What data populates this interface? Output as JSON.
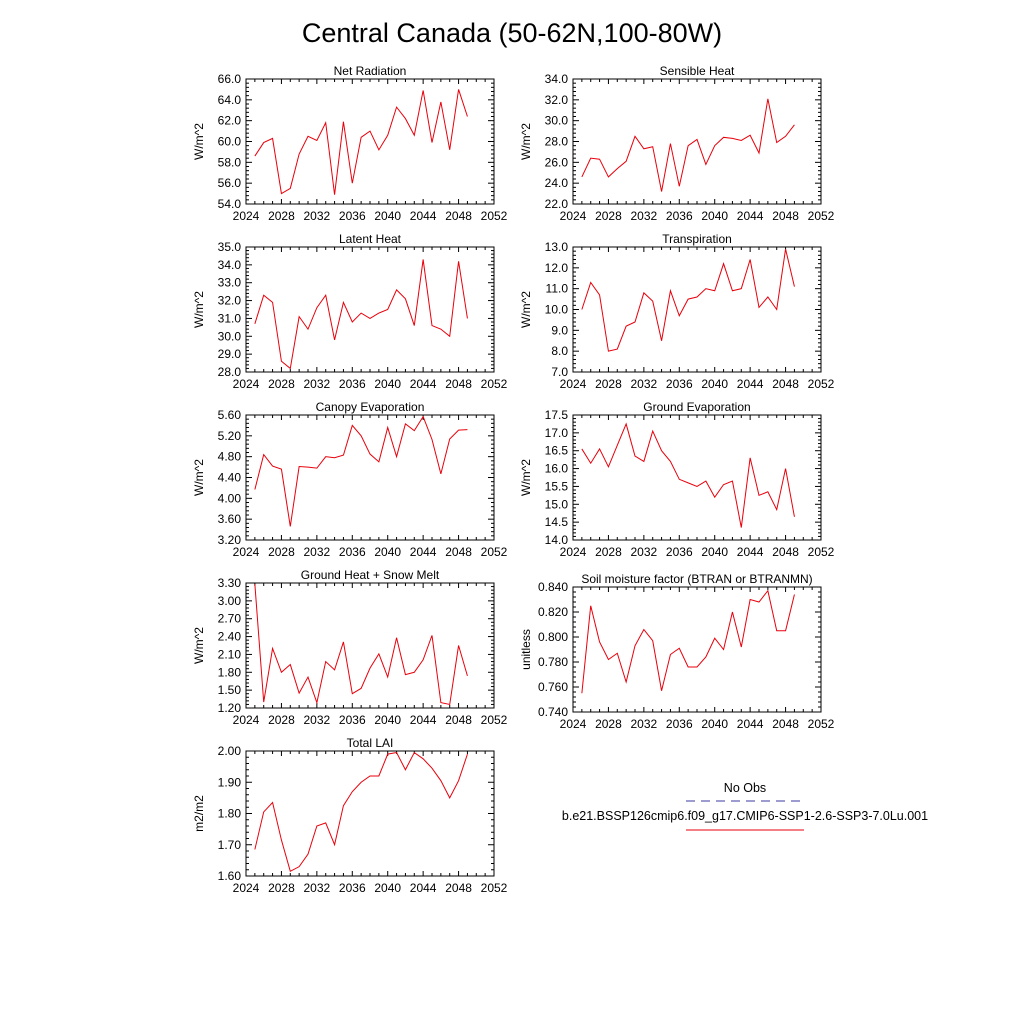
{
  "figure": {
    "title": "Central Canada (50-62N,100-80W)",
    "line_color": "#e8000b",
    "obs_color": "#3a3aa0"
  },
  "legend": {
    "obs_label": "No Obs",
    "model_label": "b.e21.BSSP126cmip6.f09_g17.CMIP6-SSP1-2.6-SSP3-7.0Lu.001"
  },
  "chart_data": [
    {
      "type": "line",
      "title": "Net Radiation",
      "ylabel": "W/m^2",
      "xlim": [
        2024,
        2052
      ],
      "ylim": [
        54,
        66
      ],
      "xticks": [
        2024,
        2028,
        2032,
        2036,
        2040,
        2044,
        2048,
        2052
      ],
      "yticks": [
        "54.0",
        "56.0",
        "58.0",
        "60.0",
        "62.0",
        "64.0",
        "66.0"
      ],
      "x": [
        2025,
        2026,
        2027,
        2028,
        2029,
        2030,
        2031,
        2032,
        2033,
        2034,
        2035,
        2036,
        2037,
        2038,
        2039,
        2040,
        2041,
        2042,
        2043,
        2044,
        2045,
        2046,
        2047,
        2048,
        2049
      ],
      "series": [
        {
          "values": [
            58.6,
            59.9,
            60.3,
            55.0,
            55.5,
            58.8,
            60.5,
            60.1,
            61.8,
            54.9,
            61.9,
            56.0,
            60.4,
            61.0,
            59.2,
            60.6,
            63.3,
            62.2,
            60.6,
            64.9,
            59.9,
            63.8,
            59.2,
            65.0,
            62.4
          ]
        }
      ]
    },
    {
      "type": "line",
      "title": "Sensible Heat",
      "ylabel": "W/m^2",
      "xlim": [
        2024,
        2052
      ],
      "ylim": [
        22,
        34
      ],
      "xticks": [
        2024,
        2028,
        2032,
        2036,
        2040,
        2044,
        2048,
        2052
      ],
      "yticks": [
        "22.0",
        "24.0",
        "26.0",
        "28.0",
        "30.0",
        "32.0",
        "34.0"
      ],
      "x": [
        2025,
        2026,
        2027,
        2028,
        2029,
        2030,
        2031,
        2032,
        2033,
        2034,
        2035,
        2036,
        2037,
        2038,
        2039,
        2040,
        2041,
        2042,
        2043,
        2044,
        2045,
        2046,
        2047,
        2048,
        2049
      ],
      "series": [
        {
          "values": [
            24.6,
            26.4,
            26.3,
            24.6,
            25.4,
            26.1,
            28.5,
            27.3,
            27.5,
            23.2,
            27.8,
            23.7,
            27.6,
            28.2,
            25.8,
            27.6,
            28.4,
            28.3,
            28.1,
            28.6,
            26.9,
            32.1,
            27.9,
            28.5,
            29.6
          ]
        }
      ]
    },
    {
      "type": "line",
      "title": "Latent Heat",
      "ylabel": "W/m^2",
      "xlim": [
        2024,
        2052
      ],
      "ylim": [
        28,
        35
      ],
      "xticks": [
        2024,
        2028,
        2032,
        2036,
        2040,
        2044,
        2048,
        2052
      ],
      "yticks": [
        "28.0",
        "29.0",
        "30.0",
        "31.0",
        "32.0",
        "33.0",
        "34.0",
        "35.0"
      ],
      "x": [
        2025,
        2026,
        2027,
        2028,
        2029,
        2030,
        2031,
        2032,
        2033,
        2034,
        2035,
        2036,
        2037,
        2038,
        2039,
        2040,
        2041,
        2042,
        2043,
        2044,
        2045,
        2046,
        2047,
        2048,
        2049
      ],
      "series": [
        {
          "values": [
            30.7,
            32.3,
            31.9,
            28.6,
            28.2,
            31.1,
            30.4,
            31.6,
            32.3,
            29.8,
            31.9,
            30.8,
            31.3,
            31.0,
            31.3,
            31.5,
            32.6,
            32.1,
            30.6,
            34.3,
            30.6,
            30.4,
            30.0,
            34.2,
            31.0
          ]
        }
      ]
    },
    {
      "type": "line",
      "title": "Transpiration",
      "ylabel": "W/m^2",
      "xlim": [
        2024,
        2052
      ],
      "ylim": [
        7,
        13
      ],
      "xticks": [
        2024,
        2028,
        2032,
        2036,
        2040,
        2044,
        2048,
        2052
      ],
      "yticks": [
        "7.0",
        "8.0",
        "9.0",
        "10.0",
        "11.0",
        "12.0",
        "13.0"
      ],
      "x": [
        2025,
        2026,
        2027,
        2028,
        2029,
        2030,
        2031,
        2032,
        2033,
        2034,
        2035,
        2036,
        2037,
        2038,
        2039,
        2040,
        2041,
        2042,
        2043,
        2044,
        2045,
        2046,
        2047,
        2048,
        2049
      ],
      "series": [
        {
          "values": [
            10.0,
            11.3,
            10.7,
            8.0,
            8.1,
            9.2,
            9.4,
            10.8,
            10.4,
            8.5,
            10.9,
            9.7,
            10.5,
            10.6,
            11.0,
            10.9,
            12.2,
            10.9,
            11.0,
            12.4,
            10.1,
            10.6,
            10.0,
            12.9,
            11.1
          ]
        }
      ]
    },
    {
      "type": "line",
      "title": "Canopy Evaporation",
      "ylabel": "W/m^2",
      "xlim": [
        2024,
        2052
      ],
      "ylim": [
        3.2,
        5.6
      ],
      "xticks": [
        2024,
        2028,
        2032,
        2036,
        2040,
        2044,
        2048,
        2052
      ],
      "yticks": [
        "3.20",
        "3.60",
        "4.00",
        "4.40",
        "4.80",
        "5.20",
        "5.60"
      ],
      "x": [
        2025,
        2026,
        2027,
        2028,
        2029,
        2030,
        2031,
        2032,
        2033,
        2034,
        2035,
        2036,
        2037,
        2038,
        2039,
        2040,
        2041,
        2042,
        2043,
        2044,
        2045,
        2046,
        2047,
        2048,
        2049
      ],
      "series": [
        {
          "values": [
            4.17,
            4.84,
            4.62,
            4.56,
            3.46,
            4.61,
            4.6,
            4.58,
            4.8,
            4.78,
            4.83,
            5.4,
            5.2,
            4.85,
            4.7,
            5.36,
            4.8,
            5.43,
            5.3,
            5.57,
            5.13,
            4.47,
            5.14,
            5.31,
            5.32
          ]
        }
      ]
    },
    {
      "type": "line",
      "title": "Ground Evaporation",
      "ylabel": "W/m^2",
      "xlim": [
        2024,
        2052
      ],
      "ylim": [
        14,
        17.5
      ],
      "xticks": [
        2024,
        2028,
        2032,
        2036,
        2040,
        2044,
        2048,
        2052
      ],
      "yticks": [
        "14.0",
        "14.5",
        "15.0",
        "15.5",
        "16.0",
        "16.5",
        "17.0",
        "17.5"
      ],
      "x": [
        2025,
        2026,
        2027,
        2028,
        2029,
        2030,
        2031,
        2032,
        2033,
        2034,
        2035,
        2036,
        2037,
        2038,
        2039,
        2040,
        2041,
        2042,
        2043,
        2044,
        2045,
        2046,
        2047,
        2048,
        2049
      ],
      "series": [
        {
          "values": [
            16.55,
            16.15,
            16.55,
            16.05,
            16.65,
            17.25,
            16.35,
            16.2,
            17.05,
            16.5,
            16.2,
            15.7,
            15.6,
            15.5,
            15.65,
            15.2,
            15.55,
            15.65,
            14.35,
            16.3,
            15.25,
            15.35,
            14.85,
            16.0,
            14.65
          ]
        }
      ]
    },
    {
      "type": "line",
      "title": "Ground Heat + Snow Melt",
      "ylabel": "W/m^2",
      "xlim": [
        2024,
        2052
      ],
      "ylim": [
        1.2,
        3.3
      ],
      "xticks": [
        2024,
        2028,
        2032,
        2036,
        2040,
        2044,
        2048,
        2052
      ],
      "yticks": [
        "1.20",
        "1.50",
        "1.80",
        "2.10",
        "2.40",
        "2.70",
        "3.00",
        "3.30"
      ],
      "x": [
        2025,
        2026,
        2027,
        2028,
        2029,
        2030,
        2031,
        2032,
        2033,
        2034,
        2035,
        2036,
        2037,
        2038,
        2039,
        2040,
        2041,
        2042,
        2043,
        2044,
        2045,
        2046,
        2047,
        2048,
        2049
      ],
      "series": [
        {
          "values": [
            3.28,
            1.3,
            2.2,
            1.8,
            1.93,
            1.45,
            1.72,
            1.29,
            1.98,
            1.84,
            2.31,
            1.44,
            1.53,
            1.87,
            2.11,
            1.72,
            2.38,
            1.76,
            1.8,
            2.01,
            2.42,
            1.29,
            1.26,
            2.25,
            1.74
          ]
        }
      ]
    },
    {
      "type": "line",
      "title": "Soil moisture factor (BTRAN or BTRANMN)",
      "ylabel": "unitless",
      "xlim": [
        2024,
        2052
      ],
      "ylim": [
        0.74,
        0.84
      ],
      "xticks": [
        2024,
        2028,
        2032,
        2036,
        2040,
        2044,
        2048,
        2052
      ],
      "yticks": [
        "0.740",
        "0.760",
        "0.780",
        "0.800",
        "0.820",
        "0.840"
      ],
      "x": [
        2025,
        2026,
        2027,
        2028,
        2029,
        2030,
        2031,
        2032,
        2033,
        2034,
        2035,
        2036,
        2037,
        2038,
        2039,
        2040,
        2041,
        2042,
        2043,
        2044,
        2045,
        2046,
        2047,
        2048,
        2049
      ],
      "series": [
        {
          "values": [
            0.755,
            0.825,
            0.796,
            0.782,
            0.787,
            0.764,
            0.793,
            0.806,
            0.797,
            0.757,
            0.786,
            0.791,
            0.776,
            0.776,
            0.784,
            0.799,
            0.79,
            0.82,
            0.792,
            0.83,
            0.828,
            0.837,
            0.805,
            0.805,
            0.834
          ]
        }
      ]
    },
    {
      "type": "line",
      "title": "Total LAI",
      "ylabel": "m2/m2",
      "xlim": [
        2024,
        2052
      ],
      "ylim": [
        1.6,
        2.0
      ],
      "xticks": [
        2024,
        2028,
        2032,
        2036,
        2040,
        2044,
        2048,
        2052
      ],
      "yticks": [
        "1.60",
        "1.70",
        "1.80",
        "1.90",
        "2.00"
      ],
      "x": [
        2025,
        2026,
        2027,
        2028,
        2029,
        2030,
        2031,
        2032,
        2033,
        2034,
        2035,
        2036,
        2037,
        2038,
        2039,
        2040,
        2041,
        2042,
        2043,
        2044,
        2045,
        2046,
        2047,
        2048,
        2049
      ],
      "series": [
        {
          "values": [
            1.685,
            1.805,
            1.835,
            1.715,
            1.615,
            1.63,
            1.67,
            1.76,
            1.77,
            1.7,
            1.825,
            1.87,
            1.9,
            1.92,
            1.92,
            1.99,
            1.995,
            1.94,
            1.995,
            1.975,
            1.945,
            1.905,
            1.85,
            1.905,
            1.99
          ]
        }
      ]
    }
  ]
}
